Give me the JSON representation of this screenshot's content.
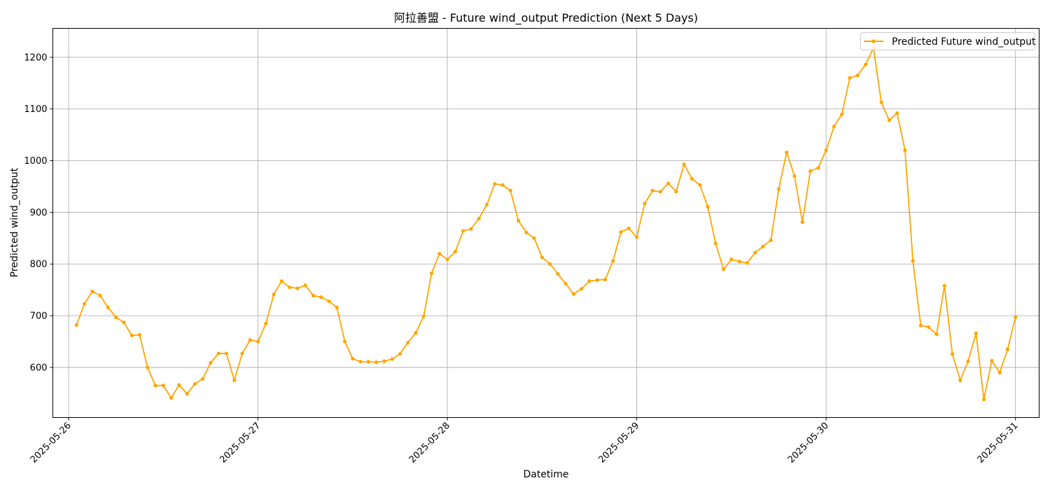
{
  "chart_data": {
    "type": "line",
    "title": "阿拉善盟 - Future wind_output Prediction (Next 5 Days)",
    "xlabel": "Datetime",
    "ylabel": "Predicted wind_output",
    "x_tick_labels": [
      "2025-05-26",
      "2025-05-27",
      "2025-05-28",
      "2025-05-29",
      "2025-05-30",
      "2025-05-31"
    ],
    "y_ticks": [
      600,
      700,
      800,
      900,
      1000,
      1100,
      1200
    ],
    "xlim": [
      "2025-05-25 22:00",
      "2025-05-31 03:00"
    ],
    "ylim": [
      503,
      1256
    ],
    "grid": true,
    "legend_position": "top-right",
    "colors": {
      "line": "#ffa500",
      "grid": "#b0b0b0"
    },
    "series": [
      {
        "name": "Predicted Future wind_output",
        "x": [
          "2025-05-26 01:00",
          "2025-05-26 02:00",
          "2025-05-26 03:00",
          "2025-05-26 04:00",
          "2025-05-26 05:00",
          "2025-05-26 06:00",
          "2025-05-26 07:00",
          "2025-05-26 08:00",
          "2025-05-26 09:00",
          "2025-05-26 10:00",
          "2025-05-26 11:00",
          "2025-05-26 12:00",
          "2025-05-26 13:00",
          "2025-05-26 14:00",
          "2025-05-26 15:00",
          "2025-05-26 16:00",
          "2025-05-26 17:00",
          "2025-05-26 18:00",
          "2025-05-26 19:00",
          "2025-05-26 20:00",
          "2025-05-26 21:00",
          "2025-05-26 22:00",
          "2025-05-26 23:00",
          "2025-05-27 00:00",
          "2025-05-27 01:00",
          "2025-05-27 02:00",
          "2025-05-27 03:00",
          "2025-05-27 04:00",
          "2025-05-27 05:00",
          "2025-05-27 06:00",
          "2025-05-27 07:00",
          "2025-05-27 08:00",
          "2025-05-27 09:00",
          "2025-05-27 10:00",
          "2025-05-27 11:00",
          "2025-05-27 12:00",
          "2025-05-27 13:00",
          "2025-05-27 14:00",
          "2025-05-27 15:00",
          "2025-05-27 16:00",
          "2025-05-27 17:00",
          "2025-05-27 18:00",
          "2025-05-27 19:00",
          "2025-05-27 20:00",
          "2025-05-27 21:00",
          "2025-05-27 22:00",
          "2025-05-27 23:00",
          "2025-05-28 00:00",
          "2025-05-28 01:00",
          "2025-05-28 02:00",
          "2025-05-28 03:00",
          "2025-05-28 04:00",
          "2025-05-28 05:00",
          "2025-05-28 06:00",
          "2025-05-28 07:00",
          "2025-05-28 08:00",
          "2025-05-28 09:00",
          "2025-05-28 10:00",
          "2025-05-28 11:00",
          "2025-05-28 12:00",
          "2025-05-28 13:00",
          "2025-05-28 14:00",
          "2025-05-28 15:00",
          "2025-05-28 16:00",
          "2025-05-28 17:00",
          "2025-05-28 18:00",
          "2025-05-28 19:00",
          "2025-05-28 20:00",
          "2025-05-28 21:00",
          "2025-05-28 22:00",
          "2025-05-28 23:00",
          "2025-05-29 00:00",
          "2025-05-29 01:00",
          "2025-05-29 02:00",
          "2025-05-29 03:00",
          "2025-05-29 04:00",
          "2025-05-29 05:00",
          "2025-05-29 06:00",
          "2025-05-29 07:00",
          "2025-05-29 08:00",
          "2025-05-29 09:00",
          "2025-05-29 10:00",
          "2025-05-29 11:00",
          "2025-05-29 12:00",
          "2025-05-29 13:00",
          "2025-05-29 14:00",
          "2025-05-29 15:00",
          "2025-05-29 16:00",
          "2025-05-29 17:00",
          "2025-05-29 18:00",
          "2025-05-29 19:00",
          "2025-05-29 20:00",
          "2025-05-29 21:00",
          "2025-05-29 22:00",
          "2025-05-29 23:00",
          "2025-05-30 00:00",
          "2025-05-30 01:00",
          "2025-05-30 02:00",
          "2025-05-30 03:00",
          "2025-05-30 04:00",
          "2025-05-30 05:00",
          "2025-05-30 06:00",
          "2025-05-30 07:00",
          "2025-05-30 08:00",
          "2025-05-30 09:00",
          "2025-05-30 10:00",
          "2025-05-30 11:00",
          "2025-05-30 12:00",
          "2025-05-30 13:00",
          "2025-05-30 14:00",
          "2025-05-30 15:00",
          "2025-05-30 16:00",
          "2025-05-30 17:00",
          "2025-05-30 18:00",
          "2025-05-30 19:00",
          "2025-05-30 20:00",
          "2025-05-30 21:00",
          "2025-05-30 22:00",
          "2025-05-30 23:00",
          "2025-05-31 00:00"
        ],
        "y": [
          682,
          723,
          747,
          739,
          716,
          697,
          687,
          662,
          663,
          600,
          565,
          565,
          541,
          566,
          549,
          568,
          578,
          609,
          627,
          627,
          575,
          627,
          653,
          650,
          685,
          741,
          767,
          755,
          753,
          759,
          739,
          736,
          728,
          716,
          650,
          617,
          611,
          611,
          610,
          612,
          616,
          626,
          648,
          667,
          699,
          782,
          820,
          809,
          824,
          864,
          868,
          888,
          915,
          955,
          953,
          942,
          884,
          861,
          850,
          813,
          800,
          781,
          762,
          742,
          752,
          767,
          769,
          770,
          806,
          862,
          869,
          852,
          917,
          942,
          940,
          956,
          940,
          993,
          965,
          953,
          911,
          840,
          790,
          809,
          805,
          802,
          822,
          834,
          846,
          945,
          1016,
          970,
          881,
          980,
          986,
          1020,
          1066,
          1090,
          1160,
          1165,
          1186,
          1218,
          1113,
          1078,
          1092,
          1020,
          806,
          681,
          678,
          664,
          758,
          626,
          575,
          612,
          666,
          538,
          613,
          590,
          635,
          697
        ]
      }
    ]
  }
}
